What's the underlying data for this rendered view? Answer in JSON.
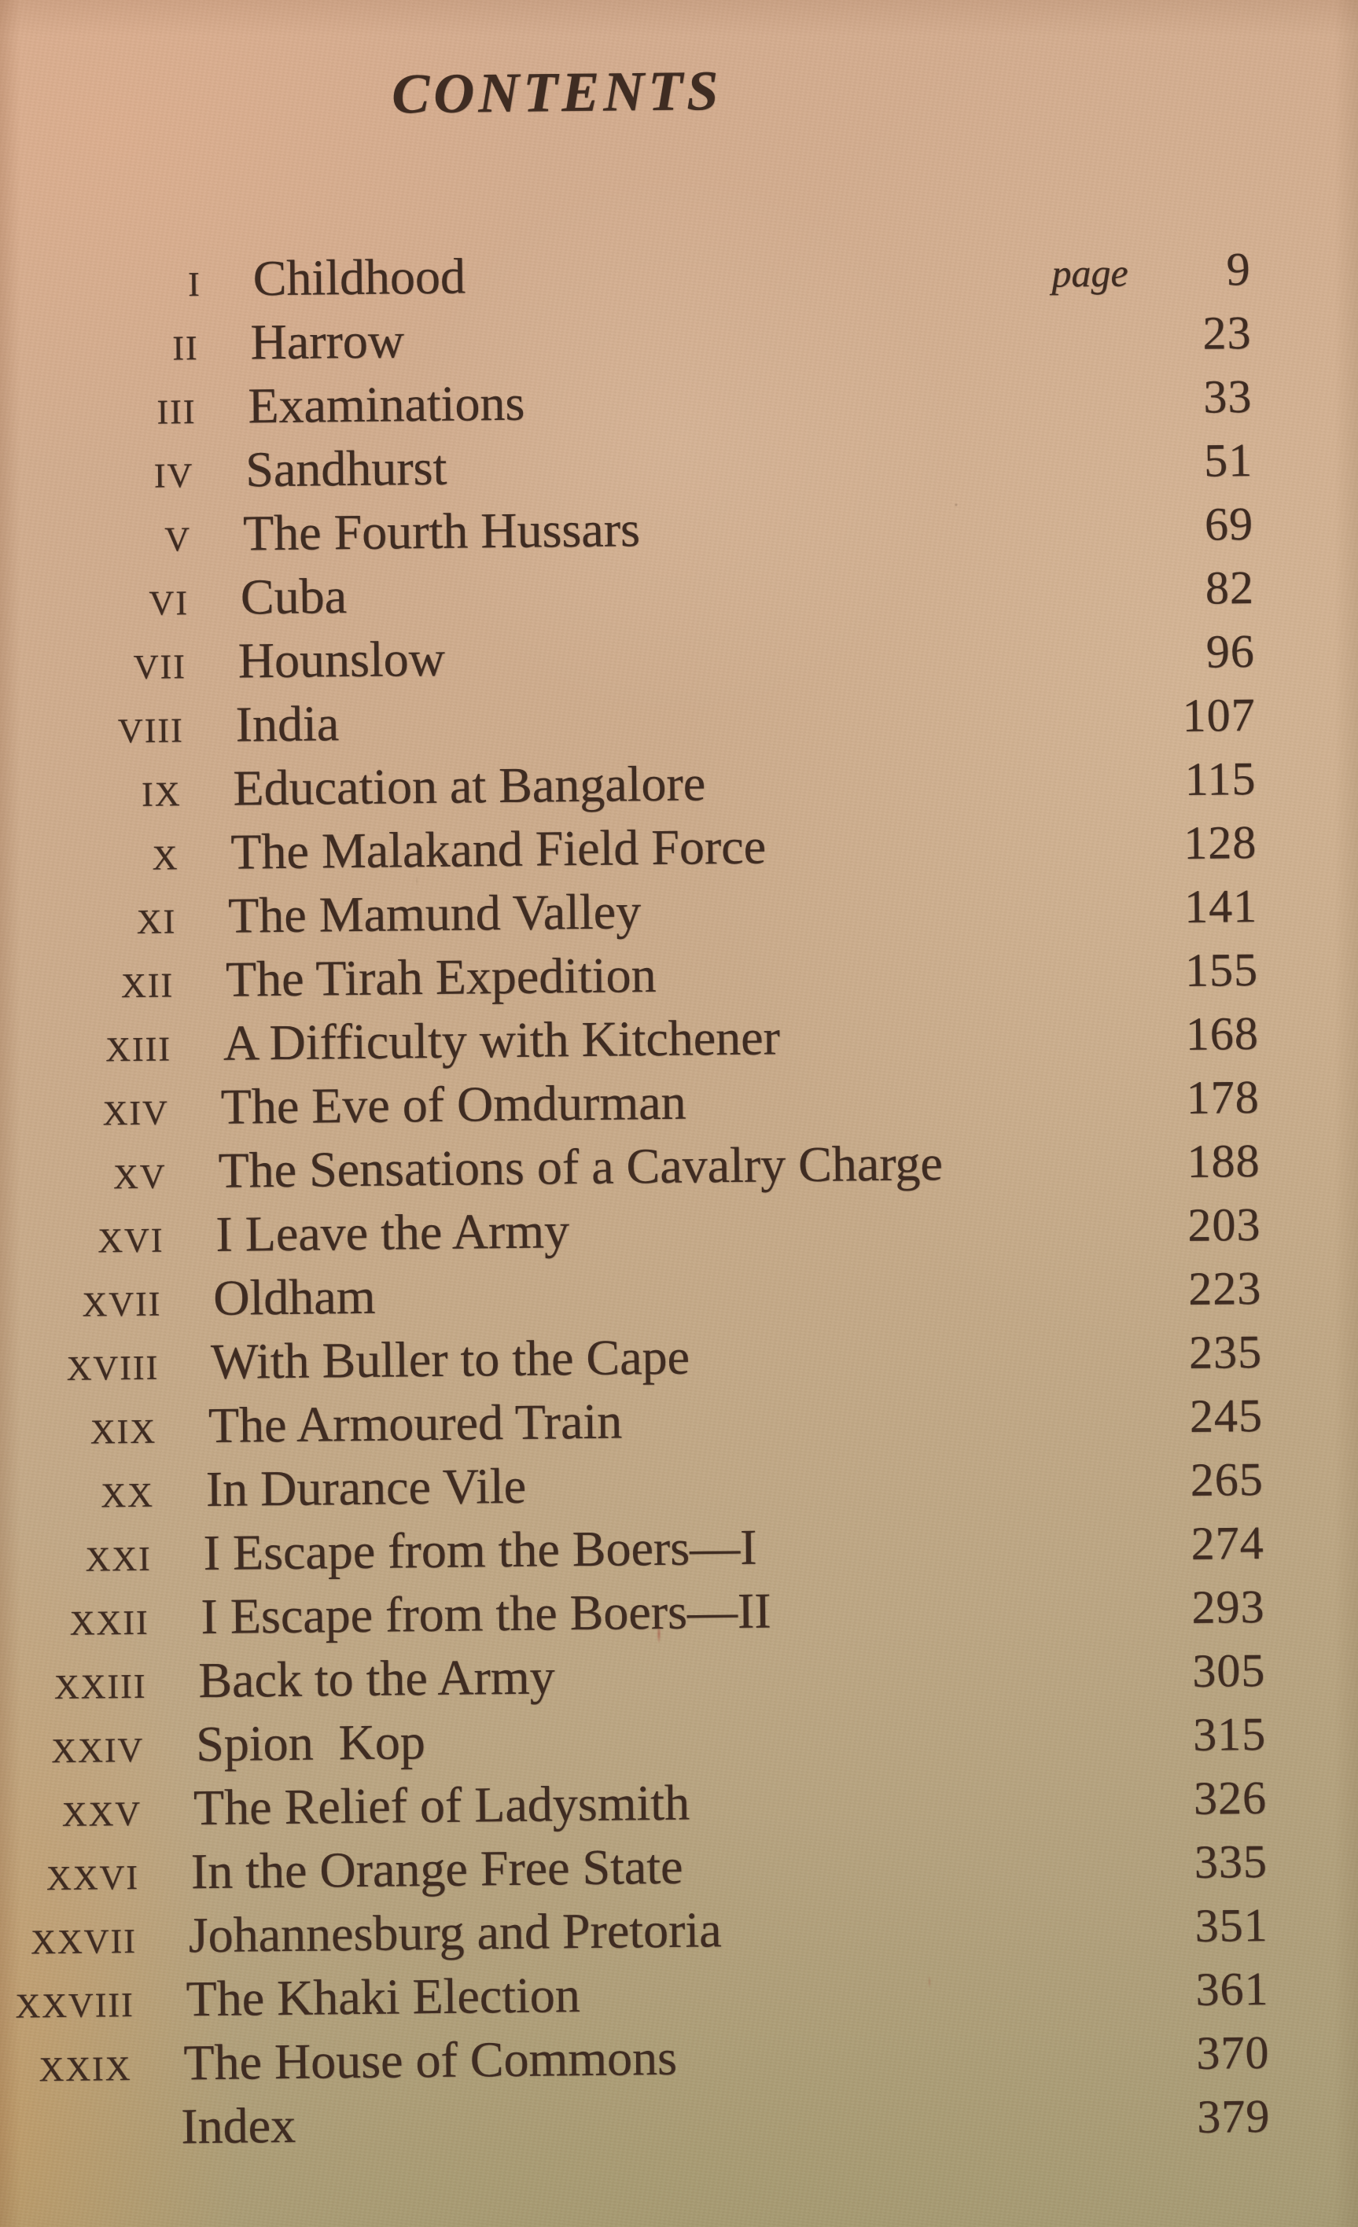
{
  "book_page": {
    "title": "CONTENTS",
    "page_word": "page",
    "colors": {
      "paper_light": "#d6ad90",
      "paper_dark": "#a89c76",
      "ink": "#3f2c22"
    },
    "entries": [
      {
        "numeral": "I",
        "title": "Childhood",
        "page": "9"
      },
      {
        "numeral": "II",
        "title": "Harrow",
        "page": "23"
      },
      {
        "numeral": "III",
        "title": "Examinations",
        "page": "33"
      },
      {
        "numeral": "IV",
        "title": "Sandhurst",
        "page": "51"
      },
      {
        "numeral": "V",
        "title": "The Fourth Hussars",
        "page": "69"
      },
      {
        "numeral": "VI",
        "title": "Cuba",
        "page": "82"
      },
      {
        "numeral": "VII",
        "title": "Hounslow",
        "page": "96"
      },
      {
        "numeral": "VIII",
        "title": "India",
        "page": "107"
      },
      {
        "numeral": "IX",
        "title": "Education at Bangalore",
        "page": "115"
      },
      {
        "numeral": "X",
        "title": "The Malakand Field Force",
        "page": "128"
      },
      {
        "numeral": "XI",
        "title": "The Mamund Valley",
        "page": "141"
      },
      {
        "numeral": "XII",
        "title": "The Tirah Expedition",
        "page": "155"
      },
      {
        "numeral": "XIII",
        "title": "A Difficulty with Kitchener",
        "page": "168"
      },
      {
        "numeral": "XIV",
        "title": "The Eve of Omdurman",
        "page": "178"
      },
      {
        "numeral": "XV",
        "title": "The Sensations of a Cavalry Charge",
        "page": "188"
      },
      {
        "numeral": "XVI",
        "title": "I Leave the Army",
        "page": "203"
      },
      {
        "numeral": "XVII",
        "title": "Oldham",
        "page": "223"
      },
      {
        "numeral": "XVIII",
        "title": "With Buller to the Cape",
        "page": "235"
      },
      {
        "numeral": "XIX",
        "title": "The Armoured Train",
        "page": "245"
      },
      {
        "numeral": "XX",
        "title": "In Durance Vile",
        "page": "265"
      },
      {
        "numeral": "XXI",
        "title": "I Escape from the Boers—I",
        "page": "274"
      },
      {
        "numeral": "XXII",
        "title": "I Escape from the Boers—II",
        "page": "293"
      },
      {
        "numeral": "XXIII",
        "title": "Back to the Army",
        "page": "305"
      },
      {
        "numeral": "XXIV",
        "title": "Spion  Kop",
        "page": "315"
      },
      {
        "numeral": "XXV",
        "title": "The Relief of Ladysmith",
        "page": "326"
      },
      {
        "numeral": "XXVI",
        "title": "In the Orange Free State",
        "page": "335"
      },
      {
        "numeral": "XXVII",
        "title": "Johannesburg and Pretoria",
        "page": "351"
      },
      {
        "numeral": "XXVIII",
        "title": "The Khaki Election",
        "page": "361"
      },
      {
        "numeral": "XXIX",
        "title": "The House of Commons",
        "page": "370"
      },
      {
        "numeral": "",
        "title": "Index",
        "page": "379"
      }
    ]
  }
}
